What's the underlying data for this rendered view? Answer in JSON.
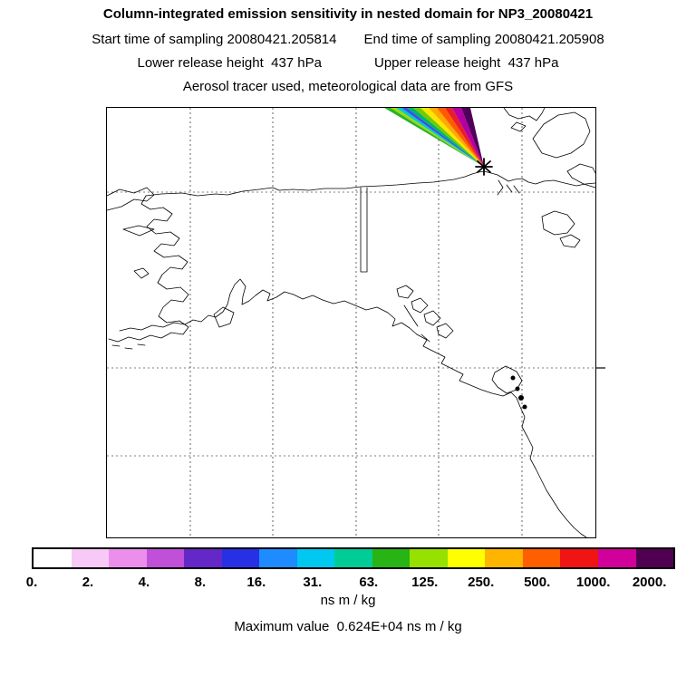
{
  "header": {
    "title": "Column-integrated emission sensitivity in nested domain for NP3_20080421",
    "start_time": "Start time of sampling 20080421.205814",
    "end_time": "End time of sampling 20080421.205908",
    "lower_release": "Lower release height  437 hPa",
    "upper_release": "Upper release height  437 hPa",
    "tracer_line": "Aerosol tracer used, meteorological data are from GFS"
  },
  "colorbar": {
    "tick_labels": [
      "0.",
      "2.",
      "4.",
      "8.",
      "16.",
      "31.",
      "63.",
      "125.",
      "250.",
      "500.",
      "1000.",
      "2000."
    ],
    "segment_colors": [
      "#ffffff",
      "#f7c9f7",
      "#ec8fec",
      "#c050d8",
      "#6428c8",
      "#2830e6",
      "#1e8cff",
      "#00c8f0",
      "#00cd96",
      "#28b414",
      "#96e100",
      "#ffff00",
      "#ffb400",
      "#ff5f00",
      "#f01414",
      "#d2009b",
      "#500050"
    ],
    "units": "ns m / kg"
  },
  "footer": {
    "max_value_label": "Maximum value  0.624E+04 ns m / kg"
  },
  "plume": {
    "origin_marker": "star",
    "wedge_colors": [
      "#2ab32a",
      "#9bdc00",
      "#00c8d2",
      "#3c50e6",
      "#00b46e",
      "#6ecc00",
      "#ffe600",
      "#ffaa00",
      "#ff5a00",
      "#e81e28",
      "#b400a0",
      "#50005a"
    ]
  },
  "chart_data": {
    "type": "heatmap",
    "title": "Column-integrated emission sensitivity in nested domain for NP3_20080421",
    "units": "ns m / kg",
    "colorbar_levels": [
      0,
      2,
      4,
      8,
      16,
      31,
      63,
      125,
      250,
      500,
      1000,
      2000
    ],
    "max_value": "0.624E+04",
    "sampling_start": "20080421.205814",
    "sampling_end": "20080421.205908",
    "lower_release_height": "437 hPa",
    "upper_release_height": "437 hPa",
    "tracer": "Aerosol",
    "meteorology": "GFS",
    "legend_position": "bottom horizontal colorbar",
    "map_region": "Alaska and northwestern North America: Arctic coast, Bering Sea coast, Aleutians, Gulf of Alaska, southeast panhandle, British Columbia and US west coast; Canadian Arctic islands top right",
    "plume_description": "Narrow rainbow fan of sensitivity extending from the release point (black star on the Arctic coast near the top right) upward to the northern map edge; core values magenta/dark purple (>=1000-2000), decreasing outward through red, orange, yellow, green and cyan/blue filaments",
    "grid": "dashed lat/lon graticule lines on map"
  }
}
